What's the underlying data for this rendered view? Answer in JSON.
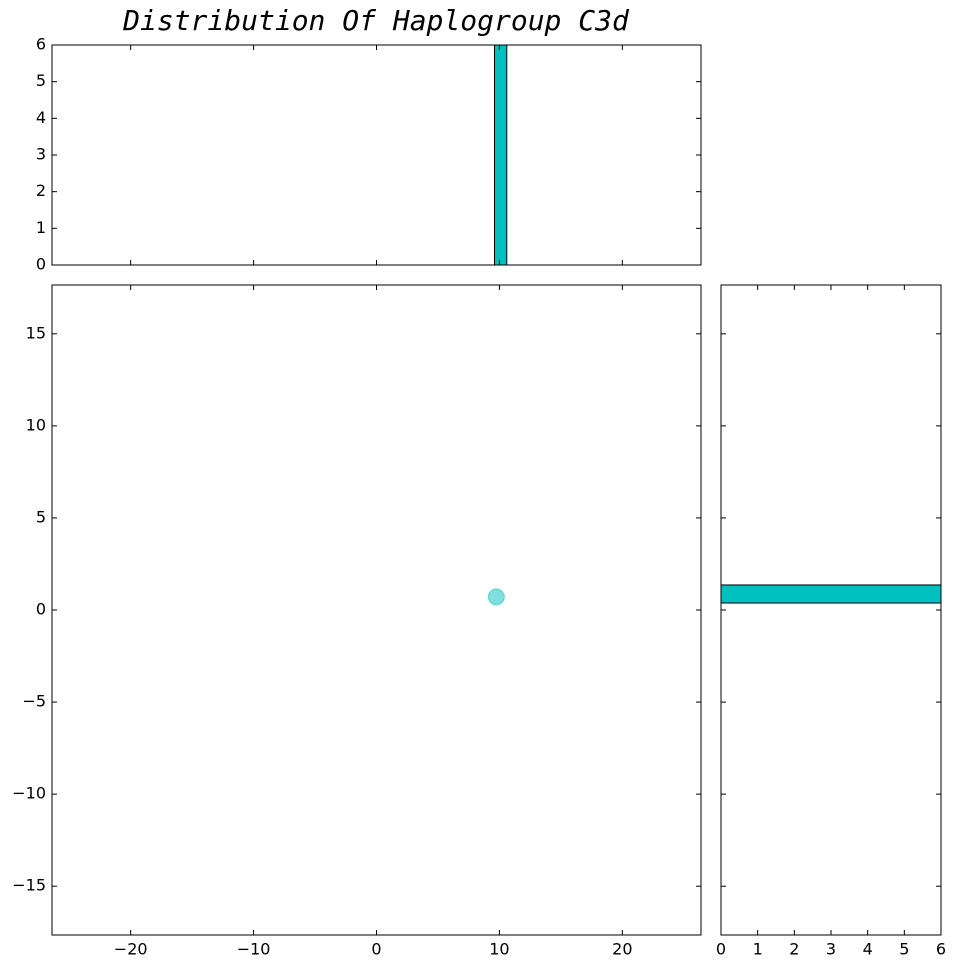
{
  "chart_data": [
    {
      "type": "histogram",
      "orientation": "vertical",
      "title": "Distribution Of Haplogroup C3d",
      "bins": [
        9.6,
        10.6
      ],
      "counts": [
        6
      ],
      "color": "#00bfbf",
      "xlim": [
        -26.4,
        26.4
      ],
      "ylim": [
        0,
        6
      ],
      "yticks": [
        0,
        1,
        2,
        3,
        4,
        5,
        6
      ]
    },
    {
      "type": "scatter",
      "x": [
        9.75
      ],
      "y": [
        0.71
      ],
      "color": "#00bfbf",
      "alpha": 0.5,
      "xlim": [
        -26.4,
        26.4
      ],
      "ylim": [
        -17.65,
        17.65
      ],
      "xticks": [
        {
          "value": -20,
          "label": "−20"
        },
        {
          "value": -10,
          "label": "−10"
        },
        0,
        10,
        20
      ],
      "yticks": [
        {
          "value": -15,
          "label": "−15"
        },
        {
          "value": -10,
          "label": "−10"
        },
        {
          "value": -5,
          "label": "−5"
        },
        0,
        5,
        10,
        15
      ]
    },
    {
      "type": "histogram",
      "orientation": "horizontal",
      "bins": [
        0.38,
        1.36
      ],
      "counts": [
        6
      ],
      "color": "#00bfbf",
      "xlim": [
        0,
        6
      ],
      "ylim": [
        -17.65,
        17.65
      ],
      "xticks": [
        0,
        1,
        2,
        3,
        4,
        5,
        6
      ]
    }
  ]
}
